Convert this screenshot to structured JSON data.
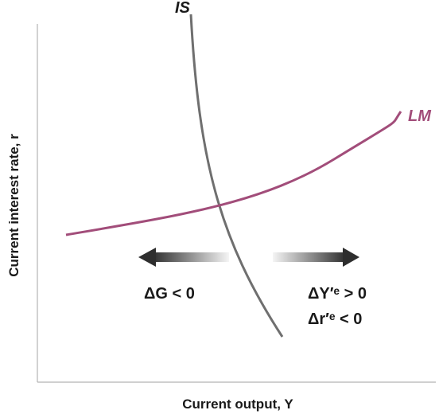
{
  "axes": {
    "x_label": "Current output, Y",
    "y_label": "Current interest rate, r"
  },
  "curves": {
    "is_label": "IS",
    "lm_label": "LM"
  },
  "annotations": {
    "left_shift": "ΔG < 0",
    "right_shift_line1": "ΔY′ᵉ > 0",
    "right_shift_line2": "Δr′ᵉ  < 0"
  },
  "colors": {
    "is_curve": "#6f6f6f",
    "lm_curve": "#a24d7a",
    "arrow": "#333333",
    "axis": "#b5b5b5"
  }
}
